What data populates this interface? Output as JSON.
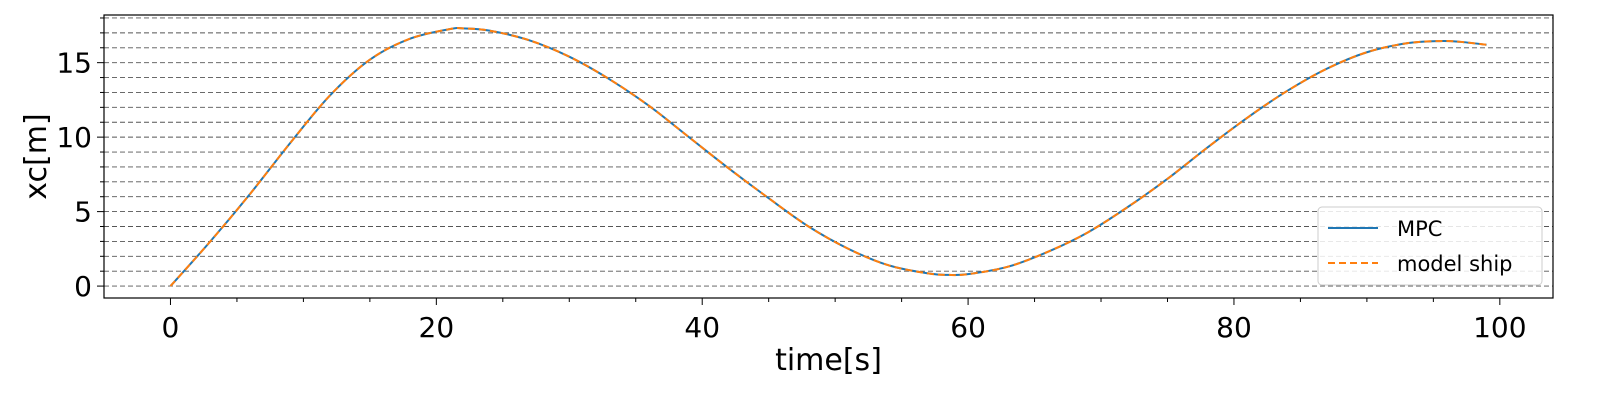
{
  "chart_data": {
    "type": "line",
    "title": "",
    "xlabel": "time[s]",
    "ylabel": "xc[m]",
    "xlim": [
      -5,
      104
    ],
    "ylim": [
      -0.8,
      18.2
    ],
    "x_ticks": [
      0,
      20,
      40,
      60,
      80,
      100
    ],
    "y_ticks": [
      0,
      5,
      10,
      15
    ],
    "x_minor_step": 5,
    "y_grid_step": 1,
    "grid": "horizontal dashed (minor)",
    "legend_position": "bottom-right",
    "series": [
      {
        "name": "MPC",
        "color": "#1f77b4",
        "style": "solid",
        "x": [
          0,
          3,
          6,
          9,
          12,
          15,
          18,
          21,
          22,
          24,
          27,
          30,
          33,
          36,
          39,
          42,
          45,
          48,
          51,
          54,
          57,
          58.5,
          60,
          63,
          66,
          69,
          72,
          75,
          78,
          81,
          84,
          87,
          90,
          93,
          95.5,
          97,
          99
        ],
        "y": [
          0,
          3.0,
          6.2,
          9.6,
          12.8,
          15.2,
          16.6,
          17.25,
          17.3,
          17.15,
          16.5,
          15.4,
          13.9,
          12.1,
          10.0,
          7.9,
          5.9,
          4.0,
          2.5,
          1.4,
          0.85,
          0.75,
          0.8,
          1.3,
          2.3,
          3.6,
          5.3,
          7.2,
          9.3,
          11.3,
          13.1,
          14.6,
          15.7,
          16.3,
          16.45,
          16.4,
          16.2
        ]
      },
      {
        "name": "model ship",
        "color": "#ff7f0e",
        "style": "dashed",
        "x": [
          0,
          3,
          6,
          9,
          12,
          15,
          18,
          21,
          22,
          24,
          27,
          30,
          33,
          36,
          39,
          42,
          45,
          48,
          51,
          54,
          57,
          58.5,
          60,
          63,
          66,
          69,
          72,
          75,
          78,
          81,
          84,
          87,
          90,
          93,
          95.5,
          97,
          99
        ],
        "y": [
          0,
          3.0,
          6.2,
          9.6,
          12.8,
          15.2,
          16.6,
          17.25,
          17.3,
          17.15,
          16.5,
          15.4,
          13.9,
          12.1,
          10.0,
          7.9,
          5.9,
          4.0,
          2.5,
          1.4,
          0.85,
          0.75,
          0.8,
          1.3,
          2.3,
          3.6,
          5.3,
          7.2,
          9.3,
          11.3,
          13.1,
          14.6,
          15.7,
          16.3,
          16.45,
          16.4,
          16.2
        ]
      }
    ]
  }
}
